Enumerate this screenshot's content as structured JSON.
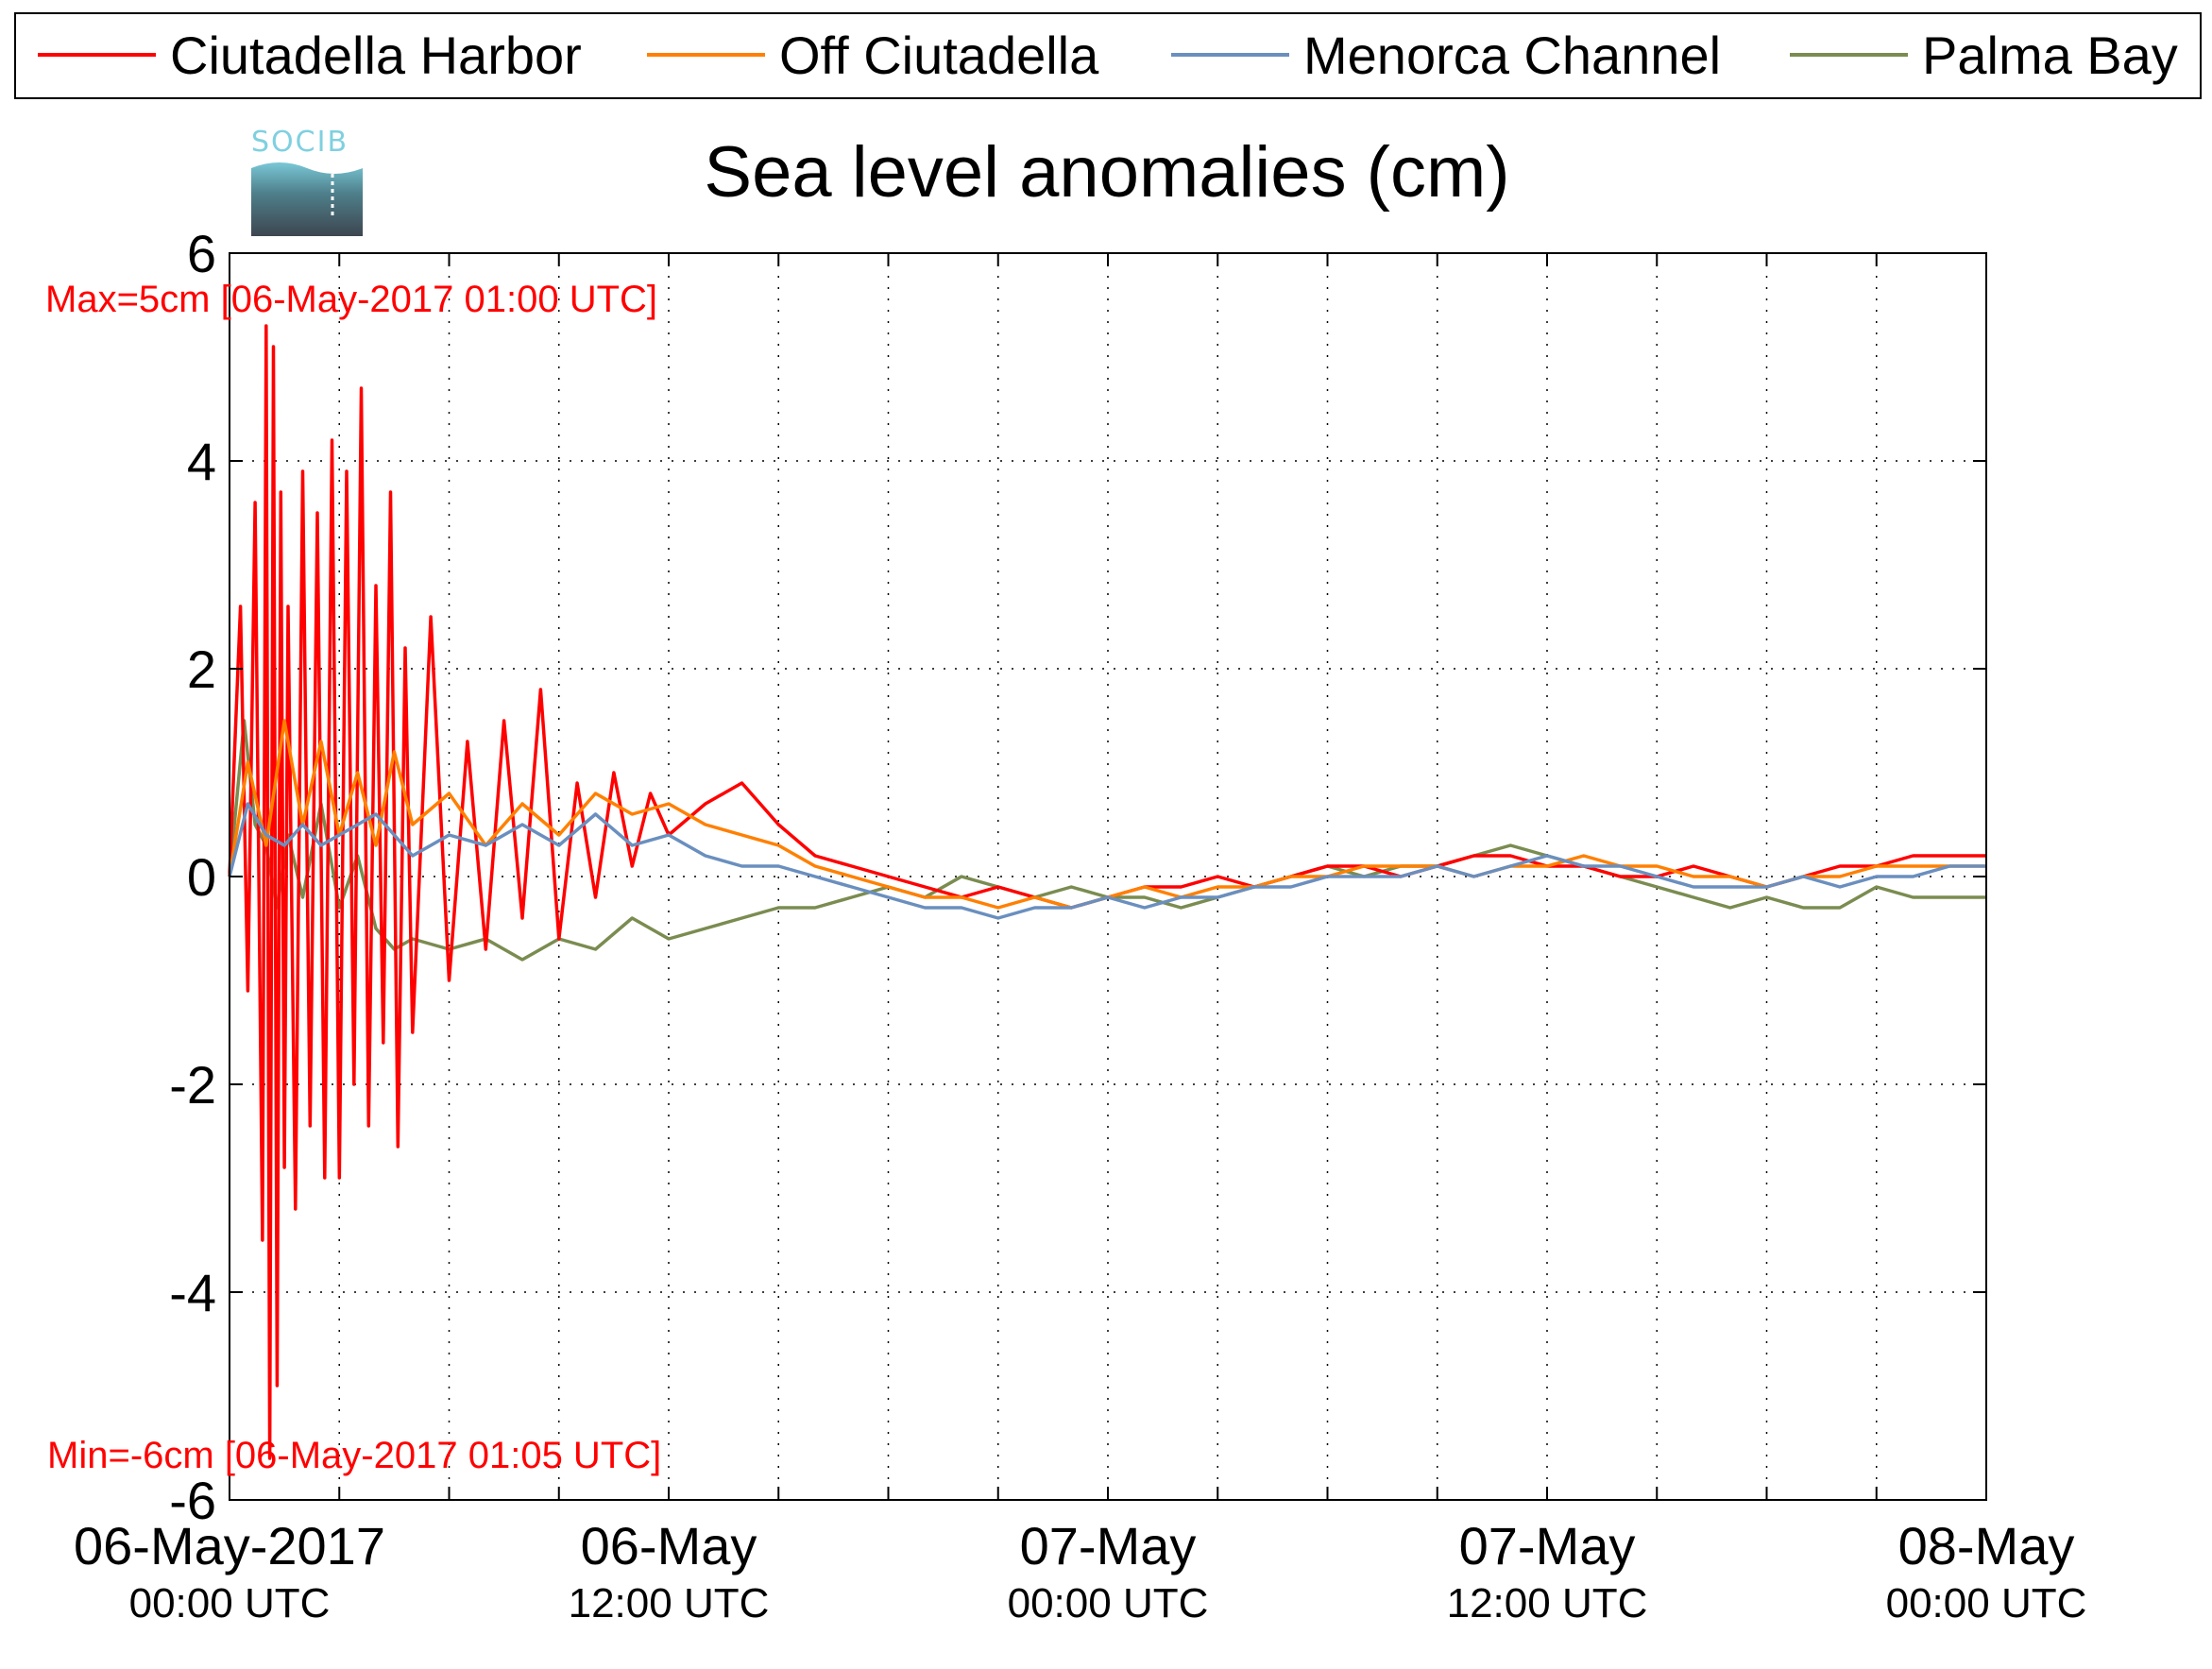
{
  "chart_data": {
    "type": "line",
    "title": "Sea level anomalies (cm)",
    "ylim": [
      -6,
      6
    ],
    "yticks": [
      6,
      4,
      2,
      0,
      -2,
      -4,
      -6
    ],
    "ytick_labels": [
      "6",
      "4",
      "2",
      "0",
      "-2",
      "-4",
      "-6"
    ],
    "xlim_hours": [
      0,
      48
    ],
    "xticks": [
      {
        "hour": 0,
        "main": "06-May-2017",
        "sub": "00:00 UTC"
      },
      {
        "hour": 12,
        "main": "06-May",
        "sub": "12:00 UTC"
      },
      {
        "hour": 24,
        "main": "07-May",
        "sub": "00:00 UTC"
      },
      {
        "hour": 36,
        "main": "07-May",
        "sub": "12:00 UTC"
      },
      {
        "hour": 48,
        "main": "08-May",
        "sub": "00:00 UTC"
      }
    ],
    "grid": true,
    "legend_position": "top",
    "annotations": {
      "max": "Max=5cm [06-May-2017 01:00 UTC]",
      "min": "Min=-6cm [06-May-2017 01:05 UTC]"
    },
    "series": [
      {
        "name": "Ciutadella Harbor",
        "color": "#ff0000",
        "x": [
          0,
          0.3,
          0.5,
          0.7,
          0.9,
          1.0,
          1.1,
          1.2,
          1.3,
          1.4,
          1.5,
          1.6,
          1.8,
          2.0,
          2.2,
          2.4,
          2.6,
          2.8,
          3.0,
          3.2,
          3.4,
          3.6,
          3.8,
          4.0,
          4.2,
          4.4,
          4.6,
          4.8,
          5.0,
          5.5,
          6.0,
          6.5,
          7.0,
          7.5,
          8.0,
          8.5,
          9.0,
          9.5,
          10.0,
          10.5,
          11.0,
          11.5,
          12.0,
          13,
          14,
          15,
          16,
          17,
          18,
          19,
          20,
          21,
          22,
          23,
          24,
          25,
          26,
          27,
          28,
          29,
          30,
          31,
          32,
          33,
          34,
          35,
          36,
          37,
          38,
          39,
          40,
          41,
          42,
          43,
          44,
          45,
          46,
          47,
          48
        ],
        "y": [
          0,
          2.6,
          -1.1,
          3.6,
          -3.5,
          5.3,
          -5.6,
          5.1,
          -4.9,
          3.7,
          -2.8,
          2.6,
          -3.2,
          3.9,
          -2.4,
          3.5,
          -2.9,
          4.2,
          -2.9,
          3.9,
          -2.0,
          4.7,
          -2.4,
          2.8,
          -1.6,
          3.7,
          -2.6,
          2.2,
          -1.5,
          2.5,
          -1.0,
          1.3,
          -0.7,
          1.5,
          -0.4,
          1.8,
          -0.6,
          0.9,
          -0.2,
          1.0,
          0.1,
          0.8,
          0.4,
          0.7,
          0.9,
          0.5,
          0.2,
          0.1,
          0.0,
          -0.1,
          -0.2,
          -0.1,
          -0.2,
          -0.3,
          -0.2,
          -0.1,
          -0.1,
          0.0,
          -0.1,
          0.0,
          0.1,
          0.1,
          0.0,
          0.1,
          0.2,
          0.2,
          0.1,
          0.1,
          0.0,
          0.0,
          0.1,
          0.0,
          -0.1,
          0.0,
          0.1,
          0.1,
          0.2,
          0.2,
          0.2
        ]
      },
      {
        "name": "Off Ciutadella",
        "color": "#ff8000",
        "x": [
          0,
          0.5,
          1.0,
          1.5,
          2.0,
          2.5,
          3.0,
          3.5,
          4.0,
          4.5,
          5.0,
          6,
          7,
          8,
          9,
          10,
          11,
          12,
          13,
          14,
          15,
          16,
          17,
          18,
          19,
          20,
          21,
          22,
          23,
          24,
          25,
          26,
          27,
          28,
          29,
          30,
          31,
          32,
          33,
          34,
          35,
          36,
          37,
          38,
          39,
          40,
          41,
          42,
          43,
          44,
          45,
          46,
          47,
          48
        ],
        "y": [
          0,
          1.1,
          0.3,
          1.5,
          0.5,
          1.3,
          0.4,
          1.0,
          0.3,
          1.2,
          0.5,
          0.8,
          0.3,
          0.7,
          0.4,
          0.8,
          0.6,
          0.7,
          0.5,
          0.4,
          0.3,
          0.1,
          0.0,
          -0.1,
          -0.2,
          -0.2,
          -0.3,
          -0.2,
          -0.3,
          -0.2,
          -0.1,
          -0.2,
          -0.1,
          -0.1,
          0.0,
          0.0,
          0.1,
          0.1,
          0.1,
          0.0,
          0.1,
          0.1,
          0.2,
          0.1,
          0.1,
          0.0,
          0.0,
          -0.1,
          0.0,
          0.0,
          0.1,
          0.1,
          0.1,
          0.1
        ]
      },
      {
        "name": "Menorca Channel",
        "color": "#6a8fbf",
        "x": [
          0,
          0.5,
          1.0,
          1.5,
          2.0,
          2.5,
          3.0,
          4,
          5,
          6,
          7,
          8,
          9,
          10,
          11,
          12,
          13,
          14,
          15,
          16,
          17,
          18,
          19,
          20,
          21,
          22,
          23,
          24,
          25,
          26,
          27,
          28,
          29,
          30,
          31,
          32,
          33,
          34,
          35,
          36,
          37,
          38,
          39,
          40,
          41,
          42,
          43,
          44,
          45,
          46,
          47,
          48
        ],
        "y": [
          0,
          0.7,
          0.4,
          0.3,
          0.5,
          0.3,
          0.4,
          0.6,
          0.2,
          0.4,
          0.3,
          0.5,
          0.3,
          0.6,
          0.3,
          0.4,
          0.2,
          0.1,
          0.1,
          0.0,
          -0.1,
          -0.2,
          -0.3,
          -0.3,
          -0.4,
          -0.3,
          -0.3,
          -0.2,
          -0.3,
          -0.2,
          -0.2,
          -0.1,
          -0.1,
          0.0,
          0.0,
          0.0,
          0.1,
          0.0,
          0.1,
          0.2,
          0.1,
          0.1,
          0.0,
          -0.1,
          -0.1,
          -0.1,
          0.0,
          -0.1,
          0.0,
          0.0,
          0.1,
          0.1
        ]
      },
      {
        "name": "Palma Bay",
        "color": "#7a8c50",
        "x": [
          0,
          0.4,
          0.7,
          1.0,
          1.3,
          1.6,
          2.0,
          2.5,
          3.0,
          3.5,
          4.0,
          4.5,
          5,
          6,
          7,
          8,
          9,
          10,
          11,
          12,
          13,
          14,
          15,
          16,
          17,
          18,
          19,
          20,
          21,
          22,
          23,
          24,
          25,
          26,
          27,
          28,
          29,
          30,
          31,
          32,
          33,
          34,
          35,
          36,
          37,
          38,
          39,
          40,
          41,
          42,
          43,
          44,
          45,
          46,
          47,
          48
        ],
        "y": [
          0,
          1.5,
          0.5,
          0.3,
          -0.3,
          0.4,
          -0.2,
          0.7,
          -0.3,
          0.2,
          -0.5,
          -0.7,
          -0.6,
          -0.7,
          -0.6,
          -0.8,
          -0.6,
          -0.7,
          -0.4,
          -0.6,
          -0.5,
          -0.4,
          -0.3,
          -0.3,
          -0.2,
          -0.1,
          -0.2,
          0.0,
          -0.1,
          -0.2,
          -0.1,
          -0.2,
          -0.2,
          -0.3,
          -0.2,
          -0.1,
          0.0,
          0.1,
          0.0,
          0.1,
          0.1,
          0.2,
          0.3,
          0.2,
          0.1,
          0.0,
          -0.1,
          -0.2,
          -0.3,
          -0.2,
          -0.3,
          -0.3,
          -0.1,
          -0.2,
          -0.2,
          -0.2
        ]
      }
    ]
  },
  "logo": {
    "text": "SOCIB"
  }
}
